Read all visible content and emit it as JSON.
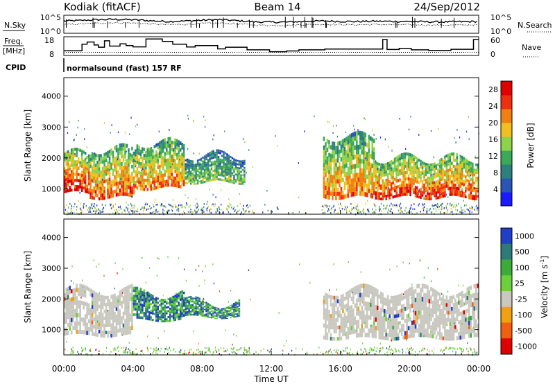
{
  "header": {
    "station": "Kodiak (fitACF)",
    "beam": "Beam 14",
    "date": "24/Sep/2012"
  },
  "panels": {
    "nsky_label": "N.Sky",
    "nsearch_label": "N.Search",
    "freq_label_1": "Freq.",
    "freq_label_2": "[MHz]",
    "nave_label": "Nave",
    "cpid_label": "CPID",
    "cpid_value": "normalsound (fast) 157 RF"
  },
  "colors": {
    "power": [
      "#1a1aff",
      "#2a55b4",
      "#2f7f7f",
      "#3da85a",
      "#8cd24a",
      "#f0c020",
      "#f08010",
      "#ee3010",
      "#e00000"
    ],
    "velocity": [
      "#1f3fc8",
      "#2e7a7a",
      "#3cab3c",
      "#6cd03c",
      "#c8c8c0",
      "#f0a010",
      "#f06010",
      "#e00000"
    ],
    "ground_scatter": "#c8c8c0"
  },
  "chart_data": [
    {
      "type": "line",
      "title": "",
      "xlabel": "",
      "ylabel": "N.Sky",
      "ylabel_right": "N.Search",
      "ylim": [
        1,
        100000
      ],
      "yscale": "log",
      "y_ticks_left": [
        "10^5",
        "10^0"
      ],
      "y_ticks_right": [
        "10^5",
        "10^0"
      ],
      "x": [
        0,
        1,
        2,
        3,
        4,
        5,
        6,
        7,
        8,
        9,
        10,
        11,
        12,
        13,
        14,
        15,
        16,
        17,
        18,
        19,
        20,
        21,
        22,
        23,
        24
      ],
      "series": [
        {
          "name": "N.Sky",
          "values": [
            2500,
            3500,
            6000,
            7000,
            5500,
            3000,
            1800,
            2500,
            4000,
            6000,
            3000,
            1500,
            1200,
            1300,
            2000,
            2500,
            2000,
            1800,
            2200,
            2000,
            1800,
            1500,
            1400,
            1600,
            1800
          ]
        },
        {
          "name": "N.Search",
          "values": [
            250,
            400,
            600,
            900,
            700,
            400,
            250,
            300,
            500,
            700,
            400,
            200,
            150,
            170,
            250,
            300,
            260,
            230,
            280,
            250,
            230,
            200,
            180,
            200,
            220
          ]
        }
      ]
    },
    {
      "type": "line",
      "title": "",
      "xlabel": "",
      "ylabel": "Freq. [MHz]",
      "ylabel_right": "Nave",
      "ylim": [
        8,
        18
      ],
      "ylim_right": [
        0,
        60
      ],
      "y_ticks_left": [
        "18",
        "8"
      ],
      "y_ticks_right": [
        "60",
        "0"
      ],
      "x": [
        0,
        1.05,
        1.35,
        1.75,
        2.0,
        2.35,
        2.65,
        3.25,
        3.6,
        4.0,
        4.75,
        5.7,
        6.3,
        7.1,
        7.6,
        8.9,
        9.35,
        10.6,
        11.9,
        12.9,
        13.6,
        15.1,
        18.45,
        18.7,
        19.4,
        20.1,
        21.1,
        22.4,
        23.7,
        24
      ],
      "series": [
        {
          "name": "Freq.",
          "values": [
            10.5,
            14.0,
            15.2,
            13.6,
            12.4,
            15.8,
            13.0,
            14.2,
            13.3,
            12.6,
            16.8,
            15.5,
            14.0,
            12.5,
            13.3,
            11.5,
            12.4,
            11.0,
            10.0,
            10.4,
            11.0,
            11.4,
            16.5,
            11.2,
            11.8,
            11.0,
            10.7,
            11.3,
            16.5,
            16.5
          ]
        },
        {
          "name": "Nave",
          "values": [
            10,
            10,
            10,
            10,
            10,
            10,
            10,
            10,
            10,
            10,
            10,
            10,
            10,
            10,
            10,
            10,
            10,
            10,
            10,
            10,
            10,
            10,
            10,
            10,
            10,
            10,
            10,
            10,
            10,
            10
          ]
        }
      ]
    },
    {
      "type": "heatmap",
      "title": "",
      "xlabel": "",
      "ylabel": "Slant Range [km]",
      "xlim": [
        0,
        24
      ],
      "ylim": [
        180,
        4600
      ],
      "y_ticks": [
        1000,
        2000,
        3000,
        4000
      ],
      "colorbar": {
        "label": "Power [dB]",
        "ticks": [
          4,
          8,
          12,
          16,
          20,
          24,
          28
        ],
        "range": [
          0,
          30
        ]
      },
      "scatter_regions": [
        {
          "t0": 0.0,
          "t1": 1.5,
          "r0": 850,
          "r1": 2150,
          "level": 0.85
        },
        {
          "t0": 1.5,
          "t1": 4.2,
          "r0": 700,
          "r1": 2300,
          "level": 0.75
        },
        {
          "t0": 4.2,
          "t1": 7.0,
          "r0": 1000,
          "r1": 2500,
          "level": 0.7
        },
        {
          "t0": 7.0,
          "t1": 10.5,
          "r0": 1200,
          "r1": 2100,
          "level": 0.45
        },
        {
          "t0": 15.0,
          "t1": 18.0,
          "r0": 700,
          "r1": 2700,
          "level": 0.7
        },
        {
          "t0": 18.0,
          "t1": 24.0,
          "r0": 700,
          "r1": 2000,
          "level": 0.8
        }
      ]
    },
    {
      "type": "heatmap",
      "title": "",
      "xlabel": "Time UT",
      "ylabel": "Slant Range [km]",
      "xlim": [
        0,
        24
      ],
      "ylim": [
        180,
        4600
      ],
      "y_ticks": [
        1000,
        2000,
        3000,
        4000
      ],
      "x_ticks": [
        "00:00",
        "04:00",
        "08:00",
        "12:00",
        "16:00",
        "20:00",
        "00:00"
      ],
      "colorbar": {
        "label": "Velocity [m s^-1]",
        "ticks": [
          1000,
          500,
          100,
          25,
          -25,
          -100,
          -500,
          -1000
        ]
      },
      "scatter_regions": [
        {
          "t0": 0.0,
          "t1": 4.0,
          "r0": 800,
          "r1": 2300,
          "kind": "ground"
        },
        {
          "t0": 4.0,
          "t1": 7.0,
          "r0": 1300,
          "r1": 2200,
          "kind": "ionospheric"
        },
        {
          "t0": 7.0,
          "t1": 10.2,
          "r0": 1400,
          "r1": 1900,
          "kind": "ionospheric"
        },
        {
          "t0": 15.0,
          "t1": 24.0,
          "r0": 700,
          "r1": 2300,
          "kind": "ground"
        }
      ]
    }
  ],
  "axes": {
    "x_ticks": [
      "00:00",
      "04:00",
      "08:00",
      "12:00",
      "16:00",
      "20:00",
      "00:00"
    ],
    "x_label": "Time UT",
    "y_label": "Slant Range [km]",
    "y_ticks": [
      "1000",
      "2000",
      "3000",
      "4000"
    ],
    "power_label": "Power [dB]",
    "velocity_label": "Velocity [m s"
  }
}
